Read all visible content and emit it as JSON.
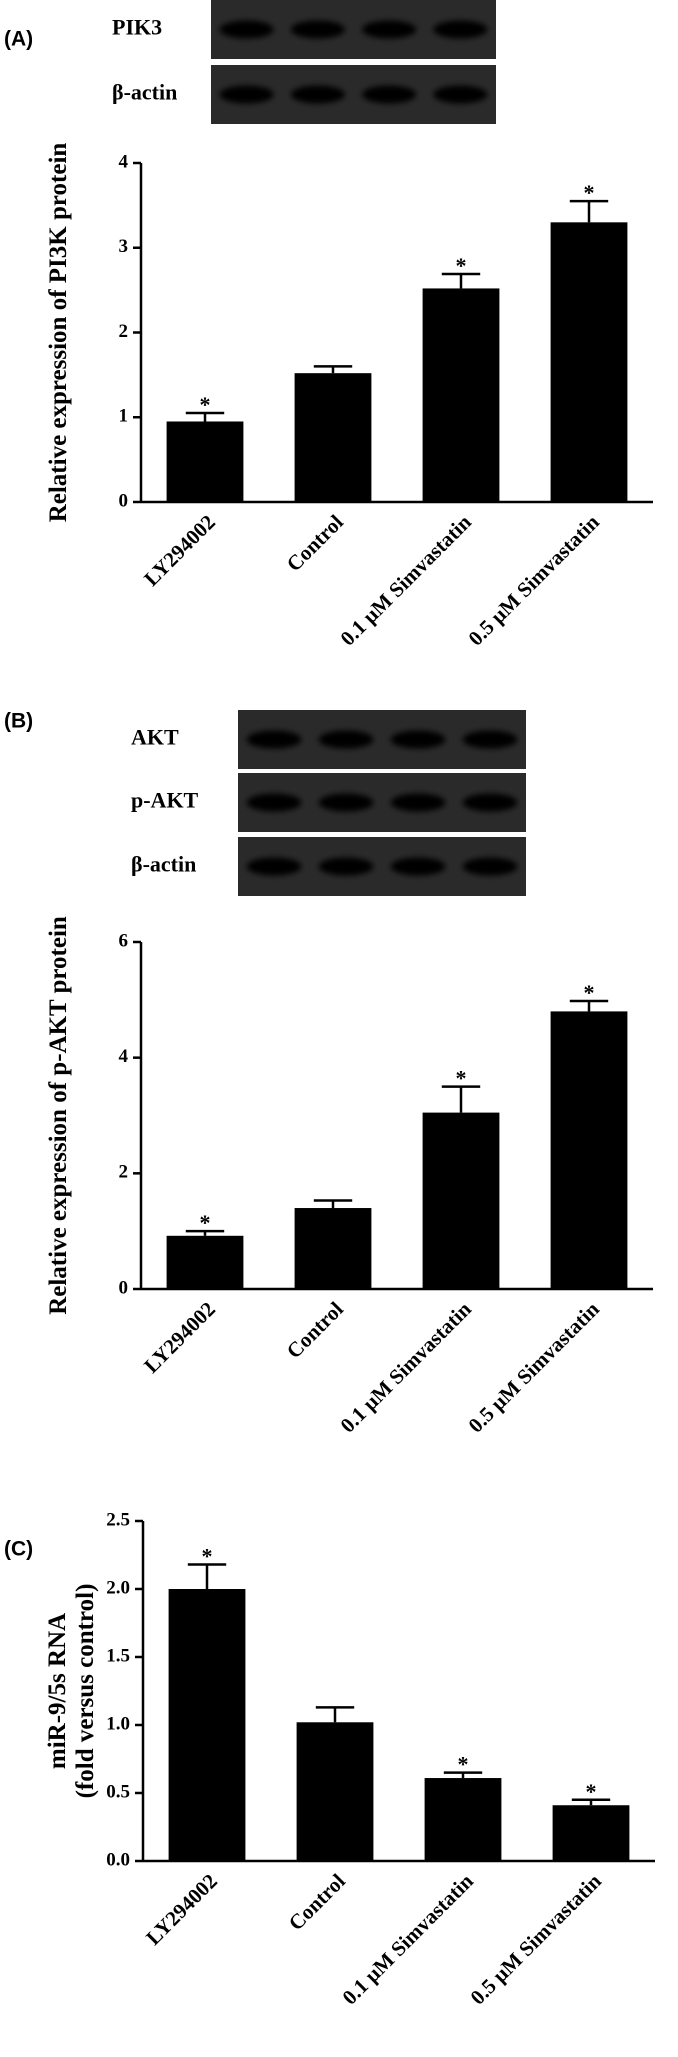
{
  "chart_data": [
    {
      "type": "bar",
      "panel": "(A)",
      "blot_labels": [
        "PIK3",
        "β-actin"
      ],
      "ylabel": [
        "Relative expression of PI3K protein"
      ],
      "categories": [
        "LY294002",
        "Control",
        "0.1 μM Simvastatin",
        "0.5 μM Simvastatin"
      ],
      "values": [
        0.95,
        1.52,
        2.52,
        3.3
      ],
      "errors": [
        0.1,
        0.08,
        0.17,
        0.25
      ],
      "significance": [
        "*",
        null,
        "*",
        "*"
      ],
      "color": "#000000",
      "ylim": [
        0,
        4
      ],
      "yticks": [
        0,
        1,
        2,
        3,
        4
      ]
    },
    {
      "type": "bar",
      "panel": "(B)",
      "blot_labels": [
        "AKT",
        "p-AKT",
        "β-actin"
      ],
      "ylabel": [
        "Relative expression of p-AKT protein"
      ],
      "categories": [
        "LY294002",
        "Control",
        "0.1 μM Simvastatin",
        "0.5 μM Simvastatin"
      ],
      "values": [
        0.92,
        1.4,
        3.05,
        4.8
      ],
      "errors": [
        0.08,
        0.13,
        0.45,
        0.18
      ],
      "significance": [
        "*",
        null,
        "*",
        "*"
      ],
      "color": "#000000",
      "ylim": [
        0,
        6
      ],
      "yticks": [
        0,
        2,
        4,
        6
      ]
    },
    {
      "type": "bar",
      "panel": "(C)",
      "ylabel": [
        "miR-9/5s RNA",
        "(fold versus control)"
      ],
      "categories": [
        "LY294002",
        "Control",
        "0.1 μM Simvastatin",
        "0.5 μM Simvastatin"
      ],
      "values": [
        2.0,
        1.02,
        0.61,
        0.41
      ],
      "errors": [
        0.18,
        0.11,
        0.04,
        0.04
      ],
      "significance": [
        "*",
        null,
        "*",
        "*"
      ],
      "color": "#000000",
      "ylim": [
        0,
        2.5
      ],
      "yticks": [
        {
          "value": 0,
          "label": "0.0"
        },
        0.5,
        {
          "value": 1,
          "label": "1.0"
        },
        1.5,
        {
          "value": 2,
          "label": "2.0"
        },
        2.5
      ]
    }
  ]
}
